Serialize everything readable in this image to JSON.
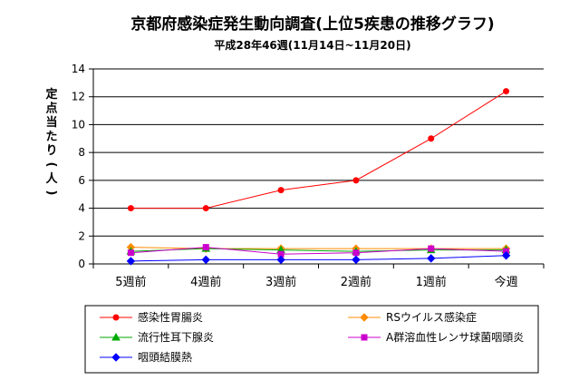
{
  "chart_data": {
    "type": "line",
    "title": "京都府感染症発生動向調査(上位5疾患の推移グラフ)",
    "subtitle": "平成28年46週(11月14日~11月20日)",
    "ylabel": [
      "定",
      "点",
      "当",
      "た",
      "り",
      "(",
      "人",
      ")"
    ],
    "xlabel": "",
    "categories": [
      "5週前",
      "4週前",
      "3週前",
      "2週前",
      "1週前",
      "今週"
    ],
    "ylim": [
      0,
      14
    ],
    "yticks": [
      0,
      2,
      4,
      6,
      8,
      10,
      12,
      14
    ],
    "grid": true,
    "legend_position": "bottom",
    "series": [
      {
        "name": "感染性胃腸炎",
        "color": "#ff0000",
        "marker": "circle",
        "values": [
          4.0,
          4.0,
          5.3,
          6.0,
          9.0,
          12.4
        ]
      },
      {
        "name": "RSウイルス感染症",
        "color": "#ff8c00",
        "marker": "diamond",
        "values": [
          1.2,
          1.1,
          1.1,
          1.1,
          1.1,
          1.1
        ]
      },
      {
        "name": "流行性耳下腺炎",
        "color": "#00aa00",
        "marker": "triangle",
        "values": [
          0.9,
          1.1,
          1.0,
          0.9,
          1.0,
          1.0
        ]
      },
      {
        "name": "A群溶血性レンサ球菌咽頭炎",
        "color": "#cc00cc",
        "marker": "square",
        "values": [
          0.8,
          1.2,
          0.7,
          0.8,
          1.1,
          0.9
        ]
      },
      {
        "name": "咽頭結膜熱",
        "color": "#0000ff",
        "marker": "diamond",
        "values": [
          0.2,
          0.3,
          0.3,
          0.3,
          0.4,
          0.6
        ]
      }
    ]
  }
}
